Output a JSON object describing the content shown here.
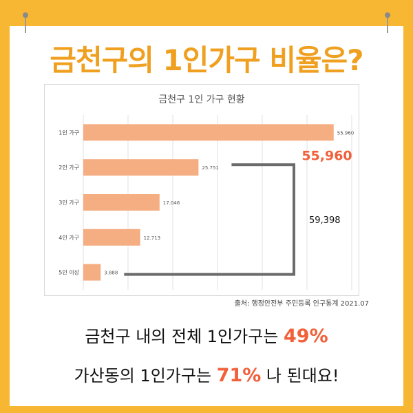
{
  "headline": "금천구의 1인가구 비율은?",
  "chart_data": {
    "type": "bar",
    "orientation": "horizontal",
    "title": "금천구 1인 가구 현황",
    "categories": [
      "1인 가구",
      "2인 가구",
      "3인 가구",
      "4인 가구",
      "5인 이상"
    ],
    "values": [
      55960,
      25751,
      17046,
      12713,
      3888
    ],
    "value_labels": [
      "55.960",
      "25.751",
      "17.046",
      "12.713",
      "3.888"
    ],
    "xlim": [
      0,
      60000
    ],
    "grid": true,
    "bar_color": "#f5ad82",
    "annotations": [
      {
        "text": "55,960",
        "color": "#f2603a",
        "target": "1인 가구"
      },
      {
        "text": "59,398",
        "color": "#111111",
        "bracket": [
          "2인 가구",
          "5인 이상"
        ]
      }
    ]
  },
  "source": "출처: 행정안전부 주민등록 인구통계 2021.07",
  "summary": {
    "line1_prefix": "금천구 내의 전체 1인가구는 ",
    "line1_highlight": "49%",
    "line2_prefix": "가산동의 1인가구는 ",
    "line2_highlight": "71%",
    "line2_suffix": " 나 된대요!"
  }
}
